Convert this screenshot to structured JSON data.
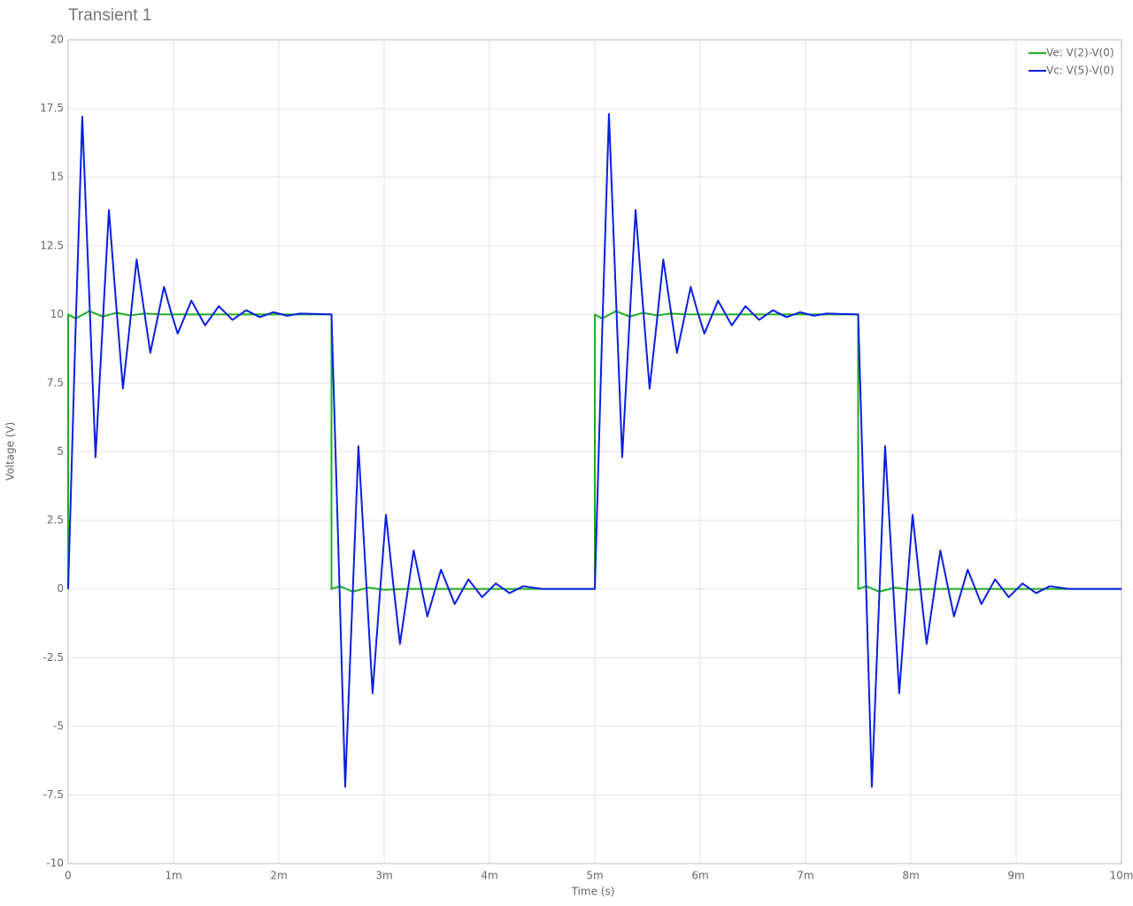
{
  "chart_data": {
    "type": "line",
    "title": "Transient 1",
    "x_label": "Time (s)",
    "y_label": "Voltage (V)",
    "xlim": [
      0,
      0.01
    ],
    "xticks": [
      0,
      {
        "value": 0.001,
        "label": "1m"
      },
      {
        "value": 0.002,
        "label": "2m"
      },
      {
        "value": 0.003,
        "label": "3m"
      },
      {
        "value": 0.004,
        "label": "4m"
      },
      {
        "value": 0.005,
        "label": "5m"
      },
      {
        "value": 0.006,
        "label": "6m"
      },
      {
        "value": 0.007,
        "label": "7m"
      },
      {
        "value": 0.008,
        "label": "8m"
      },
      {
        "value": 0.009,
        "label": "9m"
      },
      {
        "value": 0.01,
        "label": "10m"
      }
    ],
    "ylim": [
      -10,
      20
    ],
    "yticks": [
      -10,
      -7.5,
      -5,
      -2.5,
      0,
      2.5,
      5,
      7.5,
      10,
      12.5,
      15,
      17.5,
      20
    ],
    "grid": true,
    "legend": "top-right",
    "series": [
      {
        "name": "Ve: V(2)-V(0)",
        "color": "#1fae1f",
        "x": [
          0,
          0,
          7e-05,
          0.0002,
          0.00033,
          0.00046,
          0.00059,
          0.00072,
          0.0009,
          0.0025,
          0.0025,
          0.00258,
          0.0027,
          0.00285,
          0.003,
          0.0032,
          0.005,
          0.005,
          0.00507,
          0.0052,
          0.00533,
          0.00546,
          0.00559,
          0.00572,
          0.0059,
          0.0075,
          0.0075,
          0.00758,
          0.0077,
          0.00785,
          0.008,
          0.0082,
          0.01
        ],
        "values": [
          0,
          10,
          9.85,
          10.12,
          9.92,
          10.06,
          9.96,
          10.03,
          10,
          10,
          0,
          0.1,
          -0.1,
          0.05,
          -0.03,
          0,
          0,
          10,
          9.85,
          10.12,
          9.92,
          10.06,
          9.96,
          10.03,
          10,
          10,
          0,
          0.1,
          -0.1,
          0.05,
          -0.03,
          0,
          0
        ]
      },
      {
        "name": "Vc: V(5)-V(0)",
        "color": "#0a1fe0",
        "x": [
          0,
          6.7e-05,
          0.000134,
          0.000197,
          0.00026,
          0.000323,
          0.000387,
          0.000453,
          0.00052,
          0.000585,
          0.00065,
          0.000715,
          0.00078,
          0.000845,
          0.00091,
          0.000975,
          0.00104,
          0.001105,
          0.00117,
          0.0013,
          0.00143,
          0.00156,
          0.00169,
          0.00182,
          0.00195,
          0.00208,
          0.0022,
          0.0025,
          0.002565,
          0.00263,
          0.002693,
          0.002756,
          0.002823,
          0.00289,
          0.002953,
          0.003017,
          0.003083,
          0.00315,
          0.00328,
          0.00341,
          0.00354,
          0.00367,
          0.0038,
          0.00393,
          0.00406,
          0.00419,
          0.00432,
          0.0045,
          0.005,
          0.005067,
          0.005134,
          0.005197,
          0.00526,
          0.005323,
          0.005387,
          0.005453,
          0.00552,
          0.005585,
          0.00565,
          0.005715,
          0.00578,
          0.005845,
          0.00591,
          0.005975,
          0.00604,
          0.006105,
          0.00617,
          0.0063,
          0.00643,
          0.00656,
          0.00669,
          0.00682,
          0.00695,
          0.00708,
          0.0072,
          0.0075,
          0.007565,
          0.00763,
          0.007693,
          0.007756,
          0.007823,
          0.00789,
          0.007953,
          0.008017,
          0.008083,
          0.00815,
          0.00828,
          0.00841,
          0.00854,
          0.00867,
          0.0088,
          0.00893,
          0.00906,
          0.00919,
          0.00932,
          0.0095,
          0.01
        ],
        "values": [
          0,
          9,
          17.2,
          11,
          4.8,
          9.3,
          13.8,
          10.5,
          7.3,
          9.6,
          12,
          10.3,
          8.6,
          9.8,
          11,
          10.1,
          9.3,
          9.9,
          10.5,
          9.6,
          10.3,
          9.8,
          10.15,
          9.9,
          10.08,
          9.95,
          10.03,
          10,
          1.5,
          -7.2,
          -1,
          5.2,
          0.7,
          -3.8,
          -0.5,
          2.7,
          0.3,
          -2,
          1.4,
          -1,
          0.7,
          -0.55,
          0.35,
          -0.3,
          0.2,
          -0.15,
          0.1,
          0,
          0,
          9,
          17.3,
          11,
          4.8,
          9.3,
          13.8,
          10.5,
          7.3,
          9.6,
          12,
          10.3,
          8.6,
          9.8,
          11,
          10.1,
          9.3,
          9.9,
          10.5,
          9.6,
          10.3,
          9.8,
          10.15,
          9.9,
          10.08,
          9.95,
          10.03,
          10,
          1.5,
          -7.2,
          -1,
          5.2,
          0.7,
          -3.8,
          -0.5,
          2.7,
          0.3,
          -2,
          1.4,
          -1,
          0.7,
          -0.55,
          0.35,
          -0.3,
          0.2,
          -0.15,
          0.1,
          0,
          0
        ]
      }
    ]
  }
}
